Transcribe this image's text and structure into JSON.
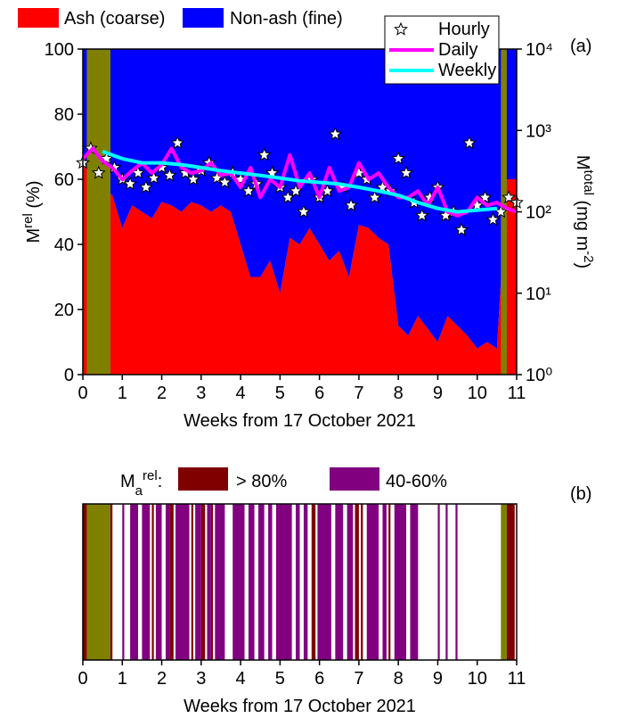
{
  "chart_data": [
    {
      "type": "area",
      "panel_label": "(a)",
      "xlabel": "Weeks from 17 October 2021",
      "ylabel": [
        {
          "text": "M"
        },
        {
          "text": "rel",
          "sup": true
        },
        {
          "text": " (%)"
        }
      ],
      "y2label": [
        {
          "text": "M"
        },
        {
          "text": "total",
          "sup": true
        },
        {
          "text": " (mg m"
        },
        {
          "text": "-2",
          "sup": true
        },
        {
          "text": ")"
        }
      ],
      "xlim": [
        0,
        11
      ],
      "xticks": [
        0,
        1,
        2,
        3,
        4,
        5,
        6,
        7,
        8,
        9,
        10,
        11
      ],
      "ylim": [
        0,
        100
      ],
      "yticks": [
        0,
        20,
        40,
        60,
        80,
        100
      ],
      "y2lim": [
        1,
        10000
      ],
      "y2log": true,
      "y2ticks": [
        {
          "value": 1,
          "label": "10⁰"
        },
        {
          "value": 10,
          "label": "10¹"
        },
        {
          "value": 100,
          "label": "10²"
        },
        {
          "value": 1000,
          "label": "10³"
        },
        {
          "value": 10000,
          "label": "10⁴"
        }
      ],
      "highlight_spans": [
        [
          0.1,
          0.7
        ],
        [
          10.6,
          10.75
        ]
      ],
      "highlight_color": "#808000",
      "x": [
        0,
        0.25,
        0.5,
        0.75,
        1,
        1.25,
        1.5,
        1.75,
        2,
        2.25,
        2.5,
        2.75,
        3,
        3.25,
        3.5,
        3.75,
        4,
        4.25,
        4.5,
        4.75,
        5,
        5.25,
        5.5,
        5.75,
        6,
        6.25,
        6.5,
        6.75,
        7,
        7.25,
        7.5,
        7.75,
        8,
        8.25,
        8.5,
        8.75,
        9,
        9.25,
        9.5,
        9.75,
        10,
        10.25,
        10.5,
        10.75,
        11
      ],
      "series": [
        {
          "name": "Ash (coarse)",
          "kind": "area",
          "color": "#ff0000",
          "values": [
            65,
            60,
            58,
            55,
            45,
            52,
            50,
            48,
            53,
            52,
            50,
            53,
            52,
            50,
            52,
            50,
            40,
            30,
            30,
            35,
            25,
            42,
            40,
            45,
            40,
            35,
            38,
            30,
            46,
            45,
            42,
            40,
            15,
            12,
            18,
            14,
            10,
            18,
            15,
            12,
            8,
            10,
            8,
            60,
            60
          ]
        },
        {
          "name": "Non-ash (fine)",
          "kind": "area",
          "color": "#0000ff",
          "values": [
            35,
            40,
            42,
            45,
            55,
            48,
            50,
            52,
            47,
            48,
            50,
            47,
            48,
            50,
            48,
            50,
            60,
            70,
            70,
            65,
            75,
            58,
            60,
            55,
            60,
            65,
            62,
            70,
            54,
            55,
            58,
            60,
            85,
            88,
            82,
            86,
            90,
            82,
            85,
            88,
            92,
            90,
            92,
            40,
            40
          ]
        },
        {
          "name": "Hourly",
          "kind": "scatter",
          "axis": "y2",
          "color": "#ffffff",
          "x": [
            0,
            0.2,
            0.4,
            0.6,
            0.8,
            1,
            1.2,
            1.4,
            1.6,
            1.8,
            2,
            2.2,
            2.4,
            2.6,
            2.8,
            3,
            3.2,
            3.4,
            3.6,
            3.8,
            4,
            4.2,
            4.4,
            4.6,
            4.8,
            5,
            5.2,
            5.4,
            5.6,
            5.8,
            6,
            6.2,
            6.4,
            6.6,
            6.8,
            7,
            7.2,
            7.4,
            7.6,
            7.8,
            8,
            8.2,
            8.4,
            8.6,
            8.8,
            9,
            9.2,
            9.4,
            9.6,
            9.8,
            10,
            10.2,
            10.4,
            10.6,
            10.8,
            11
          ],
          "values": [
            400,
            600,
            300,
            450,
            350,
            250,
            220,
            300,
            200,
            260,
            350,
            280,
            700,
            300,
            250,
            320,
            400,
            260,
            230,
            300,
            250,
            180,
            220,
            500,
            300,
            200,
            150,
            180,
            100,
            250,
            150,
            180,
            900,
            200,
            120,
            300,
            250,
            150,
            200,
            180,
            450,
            300,
            130,
            90,
            150,
            200,
            90,
            100,
            60,
            700,
            120,
            150,
            80,
            100,
            150,
            130
          ]
        },
        {
          "name": "Daily",
          "kind": "line",
          "axis": "y2",
          "color": "#ff00ff",
          "x": [
            0,
            0.25,
            0.5,
            0.75,
            1,
            1.25,
            1.5,
            1.75,
            2,
            2.25,
            2.5,
            2.75,
            3,
            3.25,
            3.5,
            3.75,
            4,
            4.25,
            4.5,
            4.75,
            5,
            5.25,
            5.5,
            5.75,
            6,
            6.25,
            6.5,
            6.75,
            7,
            7.25,
            7.5,
            7.75,
            8,
            8.25,
            8.5,
            8.75,
            9,
            9.25,
            9.5,
            9.75,
            10,
            10.25,
            10.5,
            10.75,
            11
          ],
          "values": [
            450,
            600,
            420,
            350,
            250,
            320,
            400,
            300,
            380,
            600,
            350,
            300,
            320,
            400,
            280,
            300,
            200,
            350,
            150,
            250,
            200,
            500,
            200,
            300,
            150,
            350,
            180,
            200,
            400,
            250,
            300,
            200,
            150,
            150,
            180,
            120,
            200,
            100,
            90,
            100,
            150,
            120,
            130,
            110,
            100
          ]
        },
        {
          "name": "Weekly",
          "kind": "line",
          "axis": "y2",
          "color": "#00ffff",
          "x": [
            0.5,
            1,
            1.5,
            2,
            2.5,
            3,
            3.5,
            4,
            4.5,
            5,
            5.5,
            6,
            6.5,
            7,
            7.5,
            8,
            8.5,
            9,
            9.5,
            10,
            10.5
          ],
          "values": [
            550,
            450,
            400,
            400,
            380,
            350,
            320,
            300,
            280,
            260,
            240,
            230,
            220,
            200,
            180,
            160,
            130,
            110,
            100,
            105,
            110
          ]
        }
      ]
    },
    {
      "type": "span",
      "panel_label": "(b)",
      "xlabel": "Weeks from 17 October 2021",
      "legend_title": [
        {
          "text": "M"
        },
        {
          "text": "a",
          "sub": true
        },
        {
          "text": "rel",
          "sup": true
        },
        {
          "text": ":"
        }
      ],
      "xlim": [
        0,
        11
      ],
      "xticks": [
        0,
        1,
        2,
        3,
        4,
        5,
        6,
        7,
        8,
        9,
        10,
        11
      ],
      "highlight_spans": [
        [
          0.1,
          0.7
        ],
        [
          10.6,
          10.75
        ]
      ],
      "highlight_color": "#808000",
      "series": [
        {
          "name": "> 80%",
          "color": "#800000",
          "spans": [
            [
              0,
              0.1
            ],
            [
              0.7,
              0.75
            ],
            [
              1.75,
              1.8
            ],
            [
              2.2,
              2.3
            ],
            [
              2.75,
              2.8
            ],
            [
              3.0,
              3.1
            ],
            [
              3.25,
              3.3
            ],
            [
              5.8,
              5.9
            ],
            [
              6.9,
              7.0
            ],
            [
              7.05,
              7.1
            ],
            [
              7.75,
              7.8
            ],
            [
              10.75,
              10.95
            ]
          ]
        },
        {
          "name": "40-60%",
          "color": "#800080",
          "spans": [
            [
              1.0,
              1.05
            ],
            [
              1.2,
              1.4
            ],
            [
              1.5,
              1.7
            ],
            [
              1.85,
              2.0
            ],
            [
              2.1,
              2.2
            ],
            [
              2.35,
              2.7
            ],
            [
              2.85,
              3.0
            ],
            [
              3.15,
              3.25
            ],
            [
              3.35,
              3.6
            ],
            [
              3.8,
              4.1
            ],
            [
              4.2,
              4.35
            ],
            [
              4.45,
              4.6
            ],
            [
              4.7,
              4.8
            ],
            [
              4.9,
              5.3
            ],
            [
              5.4,
              5.5
            ],
            [
              5.6,
              5.7
            ],
            [
              5.95,
              6.3
            ],
            [
              6.4,
              6.6
            ],
            [
              6.7,
              6.85
            ],
            [
              7.2,
              7.5
            ],
            [
              7.6,
              7.7
            ],
            [
              7.9,
              8.2
            ],
            [
              8.3,
              8.5
            ],
            [
              9.0,
              9.05
            ],
            [
              9.2,
              9.25
            ],
            [
              9.45,
              9.5
            ]
          ]
        }
      ]
    }
  ]
}
